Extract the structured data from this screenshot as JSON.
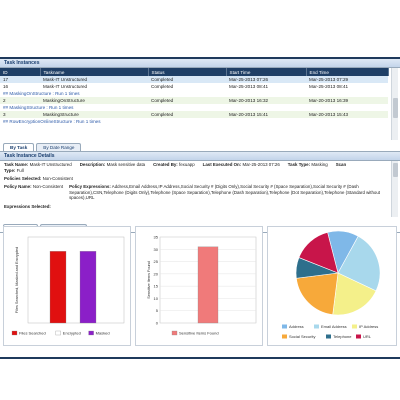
{
  "task_instances": {
    "title": "Task Instances",
    "columns": [
      "ID",
      "Taskname",
      "Status",
      "Start Time",
      "End Time"
    ],
    "rows": [
      {
        "type": "s",
        "id": "17",
        "name": "Mask-IT Unstructured",
        "status": "Completed",
        "start": "Mar-25-2013 07:26",
        "end": "Mar-25-2013 07:29"
      },
      {
        "type": "w",
        "id": "16",
        "name": "Mask-IT Unstructured",
        "status": "Completed",
        "start": "Mar-25-2013 08:41",
        "end": "Mar-25-2013 08:41"
      },
      {
        "type": "grp",
        "label": "## MaskingOnStructure : Run 1 times"
      },
      {
        "type": "g",
        "id": "2",
        "name": "MaskingOnStructure",
        "status": "Completed",
        "start": "Mar-20-2013 16:32",
        "end": "Mar-20-2013 16:39"
      },
      {
        "type": "grp",
        "label": "## MaskingStructure : Run 1 times"
      },
      {
        "type": "g",
        "id": "3",
        "name": "MaskingStructure",
        "status": "Completed",
        "start": "Mar-20-2013 15:41",
        "end": "Mar-20-2013 15:43"
      },
      {
        "type": "grp",
        "label": "## RowEncryptionOnlineStructure : Run 1 times"
      }
    ]
  },
  "view_tabs": [
    "By Task",
    "By Date Range"
  ],
  "details": {
    "title": "Task Instance Details",
    "task_name_label": "Task Name:",
    "task_name": "Mask-IT Unstructured",
    "description_label": "Description:",
    "description": "Mask sensitive data",
    "created_by_label": "Created By:",
    "created_by": "fexuapp",
    "last_executed_label": "Last Executed On:",
    "last_executed": "Mar-25-2013 07:26",
    "task_type_label": "Task Type:",
    "task_type": "Masking",
    "scan_label": "Scan",
    "type_label": "Type:",
    "type": "Full",
    "policies_label": "Policies Selected:",
    "policies": "Non-Consistent",
    "policy_name_label": "Policy Name:",
    "policy_name": "Non-Consistent",
    "policy_expr_label": "Policy Expressions:",
    "policy_expr": "Address,Email Address,IP Address,Social Security # (Digits Only),Social Security # (Space Separation),Social Security # (Dash Separation),CSN,Telephone (Digits Only),Telephone (Space Separation),Telephone (Dash Separation),Telephone (Dot Separation),Telephone (Standard without spaces),URL",
    "expressions_label": "Expressions Selected:"
  },
  "result_tabs": [
    "Summary",
    "Detailed Results"
  ],
  "charts": {
    "colors": {
      "red": "#e01010",
      "purple": "#8b1fc8",
      "salmon": "#f07a7a"
    },
    "icon_names": [
      "legend-swatch-icon"
    ]
  },
  "chart_data": [
    {
      "type": "bar",
      "categories": [
        "Files Searched",
        "Encrypted",
        "Masked"
      ],
      "values": [
        5,
        0,
        5
      ],
      "colors": [
        "#e01010",
        "#ffffff",
        "#8b1fc8"
      ],
      "ylabel": "Files Searched, Masked and Encrypted",
      "ylim": [
        0,
        6
      ],
      "legend": [
        "Files Searched",
        "Encrypted",
        "Masked"
      ]
    },
    {
      "type": "bar",
      "categories": [
        "Sensitive Items Found"
      ],
      "values": [
        31
      ],
      "colors": [
        "#f07a7a"
      ],
      "ylabel": "Sensitive Items Found",
      "ylim": [
        0,
        35
      ],
      "yticks": [
        0,
        5,
        10,
        15,
        20,
        25,
        30,
        35
      ],
      "legend": [
        "Sensitive Items Found"
      ]
    },
    {
      "type": "pie",
      "labels": [
        "Address",
        "Email Address",
        "IP Address",
        "Social Security",
        "Telephone",
        "URL"
      ],
      "values": [
        12,
        24,
        20,
        21,
        8,
        15
      ],
      "colors": [
        "#7fb8e8",
        "#a8d8ec",
        "#f4f08a",
        "#f7a93a",
        "#2e6f8c",
        "#c8154a"
      ]
    }
  ]
}
